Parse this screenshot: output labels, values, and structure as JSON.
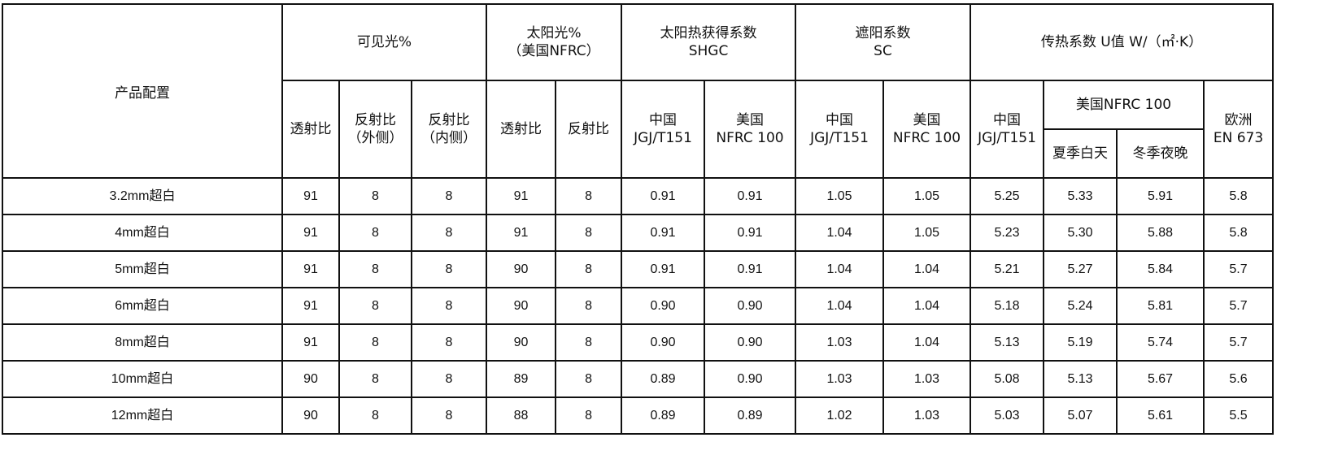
{
  "header": {
    "product": "产品配置",
    "groups": [
      {
        "label": "可见光%",
        "sub": [
          "透射比",
          "反射比\n（外侧）",
          "反射比\n（内侧）"
        ]
      },
      {
        "label": "太阳光%\n（美国NFRC）",
        "sub": [
          "透射比",
          "反射比"
        ]
      },
      {
        "label": "太阳热获得系数\nSHGC",
        "sub": [
          "中国\nJGJ/T151",
          "美国\nNFRC 100"
        ]
      },
      {
        "label": "遮阳系数\nSC",
        "sub": [
          "中国\nJGJ/T151",
          "美国\nNFRC 100"
        ]
      },
      {
        "label": "传热系数 U值 W/（㎡·K）",
        "sub": [
          "中国\nJGJ/T151",
          "美国NFRC 100",
          "欧洲\nEN 673"
        ],
        "nfrc_sub": [
          "夏季白天",
          "冬季夜晚"
        ]
      }
    ]
  },
  "rows": [
    [
      "3.2mm超白",
      "91",
      "8",
      "8",
      "91",
      "8",
      "0.91",
      "0.91",
      "1.05",
      "1.05",
      "5.25",
      "5.33",
      "5.91",
      "5.8"
    ],
    [
      "4mm超白",
      "91",
      "8",
      "8",
      "91",
      "8",
      "0.91",
      "0.91",
      "1.04",
      "1.05",
      "5.23",
      "5.30",
      "5.88",
      "5.8"
    ],
    [
      "5mm超白",
      "91",
      "8",
      "8",
      "90",
      "8",
      "0.91",
      "0.91",
      "1.04",
      "1.04",
      "5.21",
      "5.27",
      "5.84",
      "5.7"
    ],
    [
      "6mm超白",
      "91",
      "8",
      "8",
      "90",
      "8",
      "0.90",
      "0.90",
      "1.04",
      "1.04",
      "5.18",
      "5.24",
      "5.81",
      "5.7"
    ],
    [
      "8mm超白",
      "91",
      "8",
      "8",
      "90",
      "8",
      "0.90",
      "0.90",
      "1.03",
      "1.04",
      "5.13",
      "5.19",
      "5.74",
      "5.7"
    ],
    [
      "10mm超白",
      "90",
      "8",
      "8",
      "89",
      "8",
      "0.89",
      "0.90",
      "1.03",
      "1.03",
      "5.08",
      "5.13",
      "5.67",
      "5.6"
    ],
    [
      "12mm超白",
      "90",
      "8",
      "8",
      "88",
      "8",
      "0.89",
      "0.89",
      "1.02",
      "1.03",
      "5.03",
      "5.07",
      "5.61",
      "5.5"
    ]
  ]
}
